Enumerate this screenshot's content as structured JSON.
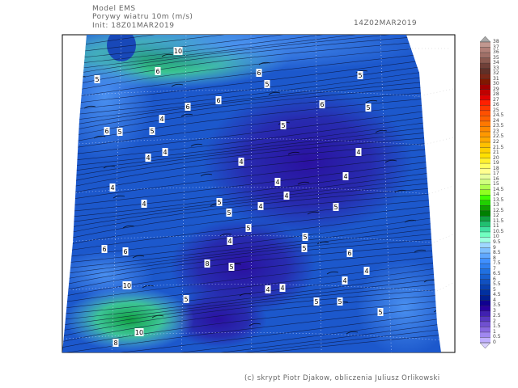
{
  "header": {
    "model": "Model EMS",
    "variable": "Porywy wiatru 10m (m/s)",
    "init": "Init: 18Z01MAR2019",
    "valid_time": "14Z02MAR2019"
  },
  "footer": "(c) skrypt Piotr Djakow, obliczenia Juliusz Orlikowski",
  "colorbar": {
    "labels": [
      "38",
      "37",
      "36",
      "35",
      "34",
      "33",
      "32",
      "31",
      "30",
      "29",
      "28",
      "27",
      "26",
      "25",
      "24.5",
      "24",
      "23.5",
      "23",
      "22.5",
      "22",
      "21.5",
      "21",
      "20",
      "19",
      "18",
      "17",
      "16",
      "15",
      "14.5",
      "14",
      "13.5",
      "13",
      "12.5",
      "12",
      "11.5",
      "11",
      "10.5",
      "10",
      "9.5",
      "9",
      "8.5",
      "8",
      "7.5",
      "7",
      "6.5",
      "6",
      "5.5",
      "5",
      "4.5",
      "4",
      "3.5",
      "3",
      "2.5",
      "2",
      "1.5",
      "1",
      "0.5",
      "0"
    ],
    "colors": [
      "#c09890",
      "#b08078",
      "#a07068",
      "#8a5a50",
      "#704038",
      "#603028",
      "#7a2818",
      "#801800",
      "#a00000",
      "#c00000",
      "#e00000",
      "#ff2000",
      "#ff3800",
      "#ff5000",
      "#ff6000",
      "#ff7800",
      "#ff8800",
      "#ff9800",
      "#ffa800",
      "#ffc000",
      "#ffd000",
      "#ffe000",
      "#fff030",
      "#ffff60",
      "#ffff90",
      "#e8ffa0",
      "#d0ff80",
      "#b0ff50",
      "#90ff20",
      "#40ff00",
      "#20d000",
      "#10a000",
      "#008000",
      "#10a040",
      "#20c070",
      "#40e0a0",
      "#70ffc0",
      "#a0ffe0",
      "#a0d8ff",
      "#80c0ff",
      "#60a8ff",
      "#4090ff",
      "#3080f0",
      "#2070e0",
      "#1860d0",
      "#1050c0",
      "#0840b0",
      "#0030a0",
      "#002090",
      "#100090",
      "#2800a0",
      "#4020b0",
      "#5838c0",
      "#7050d0",
      "#8868e0",
      "#a088f0",
      "#c0b0ff"
    ],
    "over_color": "#a8a8a8",
    "under_color": "#d8d0ff"
  },
  "contour_labels": [
    "10",
    "5",
    "6",
    "6",
    "5",
    "6",
    "6",
    "5",
    "6",
    "5",
    "6",
    "5",
    "5",
    "4",
    "5",
    "4",
    "4",
    "4",
    "4",
    "4",
    "4",
    "4",
    "4",
    "5",
    "5",
    "5",
    "4",
    "4",
    "5",
    "5",
    "4",
    "5",
    "6",
    "6",
    "6",
    "10",
    "10",
    "8",
    "8",
    "5",
    "4",
    "4",
    "4",
    "4",
    "5",
    "5",
    "5",
    "5"
  ]
}
